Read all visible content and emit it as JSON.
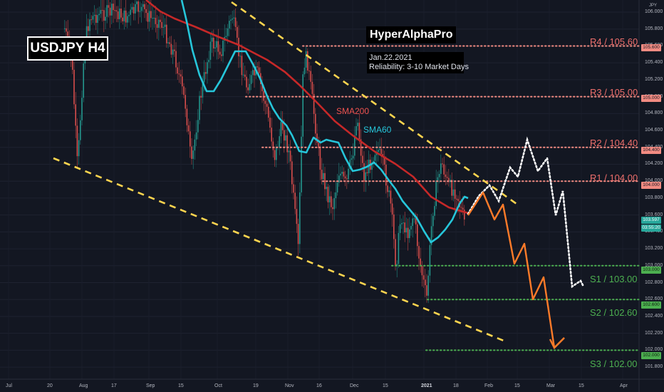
{
  "chart_data": {
    "type": "candlestick",
    "symbol_title": "USDJPY H4",
    "brand": "HyperAlphaPro",
    "info_date": "Jan.22.2021",
    "info_reliability": "Reliability: 3-10 Market Days",
    "axis_unit": "JPY",
    "y_ticks": [
      "106.000",
      "105.800",
      "105.600",
      "105.400",
      "105.200",
      "105.000",
      "104.800",
      "104.600",
      "104.400",
      "104.200",
      "104.000",
      "103.800",
      "103.600",
      "103.400",
      "103.200",
      "103.000",
      "102.800",
      "102.600",
      "102.400",
      "102.200",
      "102.000",
      "101.800"
    ],
    "x_ticks": [
      "Jul",
      "20",
      "Aug",
      "17",
      "Sep",
      "15",
      "Oct",
      "19",
      "Nov",
      "16",
      "Dec",
      "15",
      "2021",
      "18",
      "Feb",
      "15",
      "Mar",
      "15",
      "Apr"
    ],
    "ylim": [
      101.75,
      106.05
    ],
    "levels": [
      {
        "name": "R4 / 105.60",
        "value": 105.6,
        "tag": "105.600",
        "kind": "resistance"
      },
      {
        "name": "R3 / 105.00",
        "value": 105.0,
        "tag": "105.000",
        "kind": "resistance"
      },
      {
        "name": "R2 / 104.40",
        "value": 104.4,
        "tag": "104.400",
        "kind": "resistance"
      },
      {
        "name": "R1 / 104.00",
        "value": 104.0,
        "tag": "104.000",
        "kind": "resistance"
      },
      {
        "name": "S1 / 103.00",
        "value": 103.0,
        "tag": "103.000",
        "kind": "support"
      },
      {
        "name": "S2 / 102.60",
        "value": 102.6,
        "tag": "102.600",
        "kind": "support"
      },
      {
        "name": "S3 / 102.00",
        "value": 102.0,
        "tag": "102.000",
        "kind": "support"
      }
    ],
    "last_price": "103.597",
    "countdown": "03:55:20",
    "series": [
      {
        "name": "SMA200",
        "color": "#c62828",
        "points": [
          [
            205,
            0
          ],
          [
            225,
            16
          ],
          [
            245,
            26
          ],
          [
            275,
            38
          ],
          [
            305,
            51
          ],
          [
            335,
            63
          ],
          [
            352,
            72
          ],
          [
            375,
            84
          ],
          [
            400,
            101
          ],
          [
            420,
            119
          ],
          [
            445,
            144
          ],
          [
            470,
            170
          ],
          [
            495,
            190
          ],
          [
            525,
            212
          ],
          [
            555,
            230
          ],
          [
            580,
            248
          ],
          [
            605,
            276
          ],
          [
            630,
            291
          ],
          [
            657,
            299
          ]
        ]
      },
      {
        "name": "SMA60",
        "color": "#26c6da",
        "points": [
          [
            255,
            0
          ],
          [
            262,
            30
          ],
          [
            270,
            70
          ],
          [
            280,
            105
          ],
          [
            290,
            128
          ],
          [
            300,
            128
          ],
          [
            310,
            112
          ],
          [
            320,
            92
          ],
          [
            330,
            72
          ],
          [
            345,
            72
          ],
          [
            355,
            90
          ],
          [
            365,
            110
          ],
          [
            375,
            135
          ],
          [
            383,
            152
          ],
          [
            392,
            166
          ],
          [
            402,
            176
          ],
          [
            410,
            190
          ],
          [
            420,
            212
          ],
          [
            430,
            214
          ],
          [
            440,
            193
          ],
          [
            450,
            200
          ],
          [
            458,
            196
          ],
          [
            466,
            198
          ],
          [
            475,
            200
          ],
          [
            485,
            222
          ],
          [
            495,
            240
          ],
          [
            505,
            238
          ],
          [
            515,
            234
          ],
          [
            525,
            228
          ],
          [
            535,
            238
          ],
          [
            545,
            252
          ],
          [
            555,
            265
          ],
          [
            565,
            282
          ],
          [
            575,
            294
          ],
          [
            585,
            306
          ],
          [
            595,
            324
          ],
          [
            605,
            340
          ],
          [
            615,
            333
          ],
          [
            625,
            322
          ],
          [
            635,
            308
          ],
          [
            645,
            286
          ],
          [
            652,
            276
          ],
          [
            657,
            278
          ]
        ]
      }
    ],
    "trend_channel": {
      "color": "#ffd54f"
    },
    "projection_white": {
      "color": "#ffffff"
    },
    "projection_orange": {
      "color": "#ff7b29"
    }
  }
}
